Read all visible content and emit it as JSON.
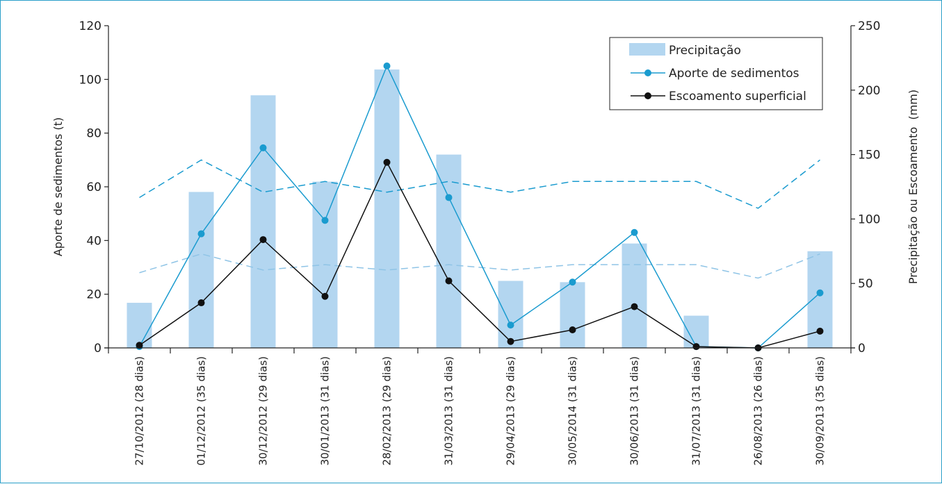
{
  "chart_data": {
    "type": "bar",
    "categories": [
      "27/10/2012 (28 dias)",
      "01/12/2012 (35 dias)",
      "30/12/2012 (29 dias)",
      "30/01/2013 (31 dias)",
      "28/02/2013 (29 dias)",
      "31/03/2013 (31 dias)",
      "29/04/2013 (29 dias)",
      "30/05/2014 (31 dias)",
      "30/06/2013 (31 dias)",
      "31/07/2013 (31 dias)",
      "26/08/2013 (26 dias)",
      "30/09/2013 (35 dias)"
    ],
    "series": [
      {
        "name": "Precipitação",
        "type": "bar",
        "axis": "right",
        "color": "#b3d6f0",
        "values": [
          35,
          121,
          196,
          129,
          216,
          150,
          52,
          51,
          81,
          25,
          0,
          75
        ]
      },
      {
        "name": "Aporte de sedimentos",
        "type": "line",
        "axis": "left",
        "color": "#1a9bcf",
        "values": [
          0.5,
          42.5,
          74.5,
          47.5,
          105,
          56,
          8.5,
          24.5,
          43,
          0.5,
          0,
          20.5
        ]
      },
      {
        "name": "Escoamento superficial",
        "type": "line",
        "axis": "right",
        "color": "#111111",
        "values": [
          2,
          35,
          84,
          40,
          144,
          52,
          5,
          14,
          32,
          1,
          0,
          13
        ]
      },
      {
        "type": "dashed",
        "axis": "left",
        "color": "#1a9bcf",
        "values": [
          56,
          70,
          58,
          62,
          58,
          62,
          58,
          62,
          62,
          62,
          52,
          70
        ]
      },
      {
        "type": "dashed",
        "axis": "left",
        "color": "#8fc4e6",
        "values": [
          28,
          35,
          29,
          31,
          29,
          31,
          29,
          31,
          31,
          31,
          26,
          35
        ]
      }
    ],
    "ylabel": "Aporte de sedimentos (t)",
    "y2label": "Precipitação ou Escoamento  (mm)",
    "ylim": [
      0,
      120
    ],
    "y2lim": [
      0,
      250
    ],
    "yticks": [
      "0",
      "20",
      "40",
      "60",
      "80",
      "100",
      "120"
    ],
    "y2ticks": [
      "0",
      "50",
      "100",
      "150",
      "200",
      "250"
    ],
    "legend": {
      "position": "top-right",
      "entries": [
        "Precipitação",
        "Aporte de sedimentos",
        "Escoamento superficial"
      ]
    },
    "grid": false
  }
}
